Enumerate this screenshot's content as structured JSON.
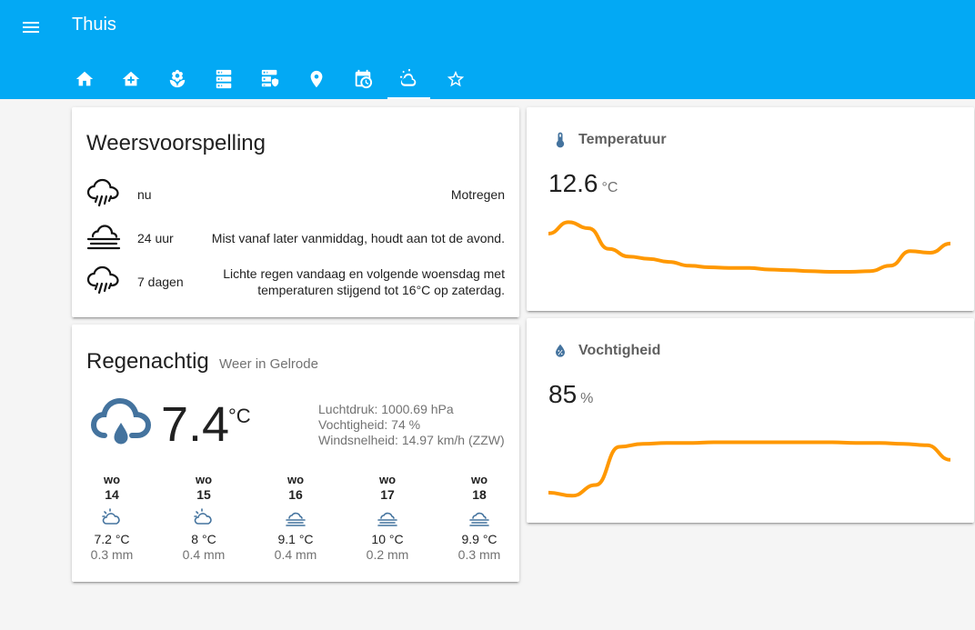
{
  "header": {
    "title": "Thuis",
    "tabs": [
      "home",
      "home-plus",
      "flower",
      "server",
      "server-security",
      "map-marker",
      "calendar-clock",
      "weather-partly-cloudy",
      "star"
    ],
    "active_tab": 7
  },
  "forecast": {
    "title": "Weersvoorspelling",
    "rows": [
      {
        "icon": "rain-icon",
        "when": "nu",
        "text": "Motregen"
      },
      {
        "icon": "fog-icon",
        "when": "24 uur",
        "text": "Mist vanaf later vanmiddag, houdt aan tot de avond."
      },
      {
        "icon": "rain-icon",
        "when": "7 dagen",
        "text": "Lichte regen vandaag en volgende woensdag met temperaturen stijgend tot 16°C op zaterdag."
      }
    ]
  },
  "weather": {
    "state": "Regenachtig",
    "name": "Weer in Gelrode",
    "temperature": "7.4",
    "unit": "°C",
    "attributes": [
      "Luchtdruk: 1000.69 hPa",
      "Vochtigheid: 74 %",
      "Windsnelheid: 14.97 km/h (ZZW)"
    ],
    "days": [
      {
        "day": "wo",
        "date": "14",
        "icon": "partly-cloudy",
        "temp": "7.2 °C",
        "precip": "0.3 mm"
      },
      {
        "day": "wo",
        "date": "15",
        "icon": "partly-cloudy",
        "temp": "8 °C",
        "precip": "0.4 mm"
      },
      {
        "day": "wo",
        "date": "16",
        "icon": "fog",
        "temp": "9.1 °C",
        "precip": "0.4 mm"
      },
      {
        "day": "wo",
        "date": "17",
        "icon": "fog",
        "temp": "10 °C",
        "precip": "0.2 mm"
      },
      {
        "day": "wo",
        "date": "18",
        "icon": "fog",
        "temp": "9.9 °C",
        "precip": "0.3 mm"
      }
    ]
  },
  "temperature": {
    "name": "Temperatuur",
    "value": "12.6",
    "unit": "°C",
    "line_color": "#ff9800",
    "trend": [
      0.75,
      0.9,
      0.82,
      0.55,
      0.45,
      0.42,
      0.38,
      0.33,
      0.31,
      0.3,
      0.3,
      0.28,
      0.27,
      0.26,
      0.25,
      0.25,
      0.26,
      0.33,
      0.52,
      0.5,
      0.62
    ]
  },
  "humidity": {
    "name": "Vochtigheid",
    "value": "85",
    "unit": "%",
    "line_color": "#ff9800",
    "trend": [
      0.12,
      0.08,
      0.22,
      0.72,
      0.76,
      0.77,
      0.77,
      0.78,
      0.78,
      0.78,
      0.78,
      0.78,
      0.78,
      0.77,
      0.77,
      0.76,
      0.74,
      0.55
    ]
  }
}
